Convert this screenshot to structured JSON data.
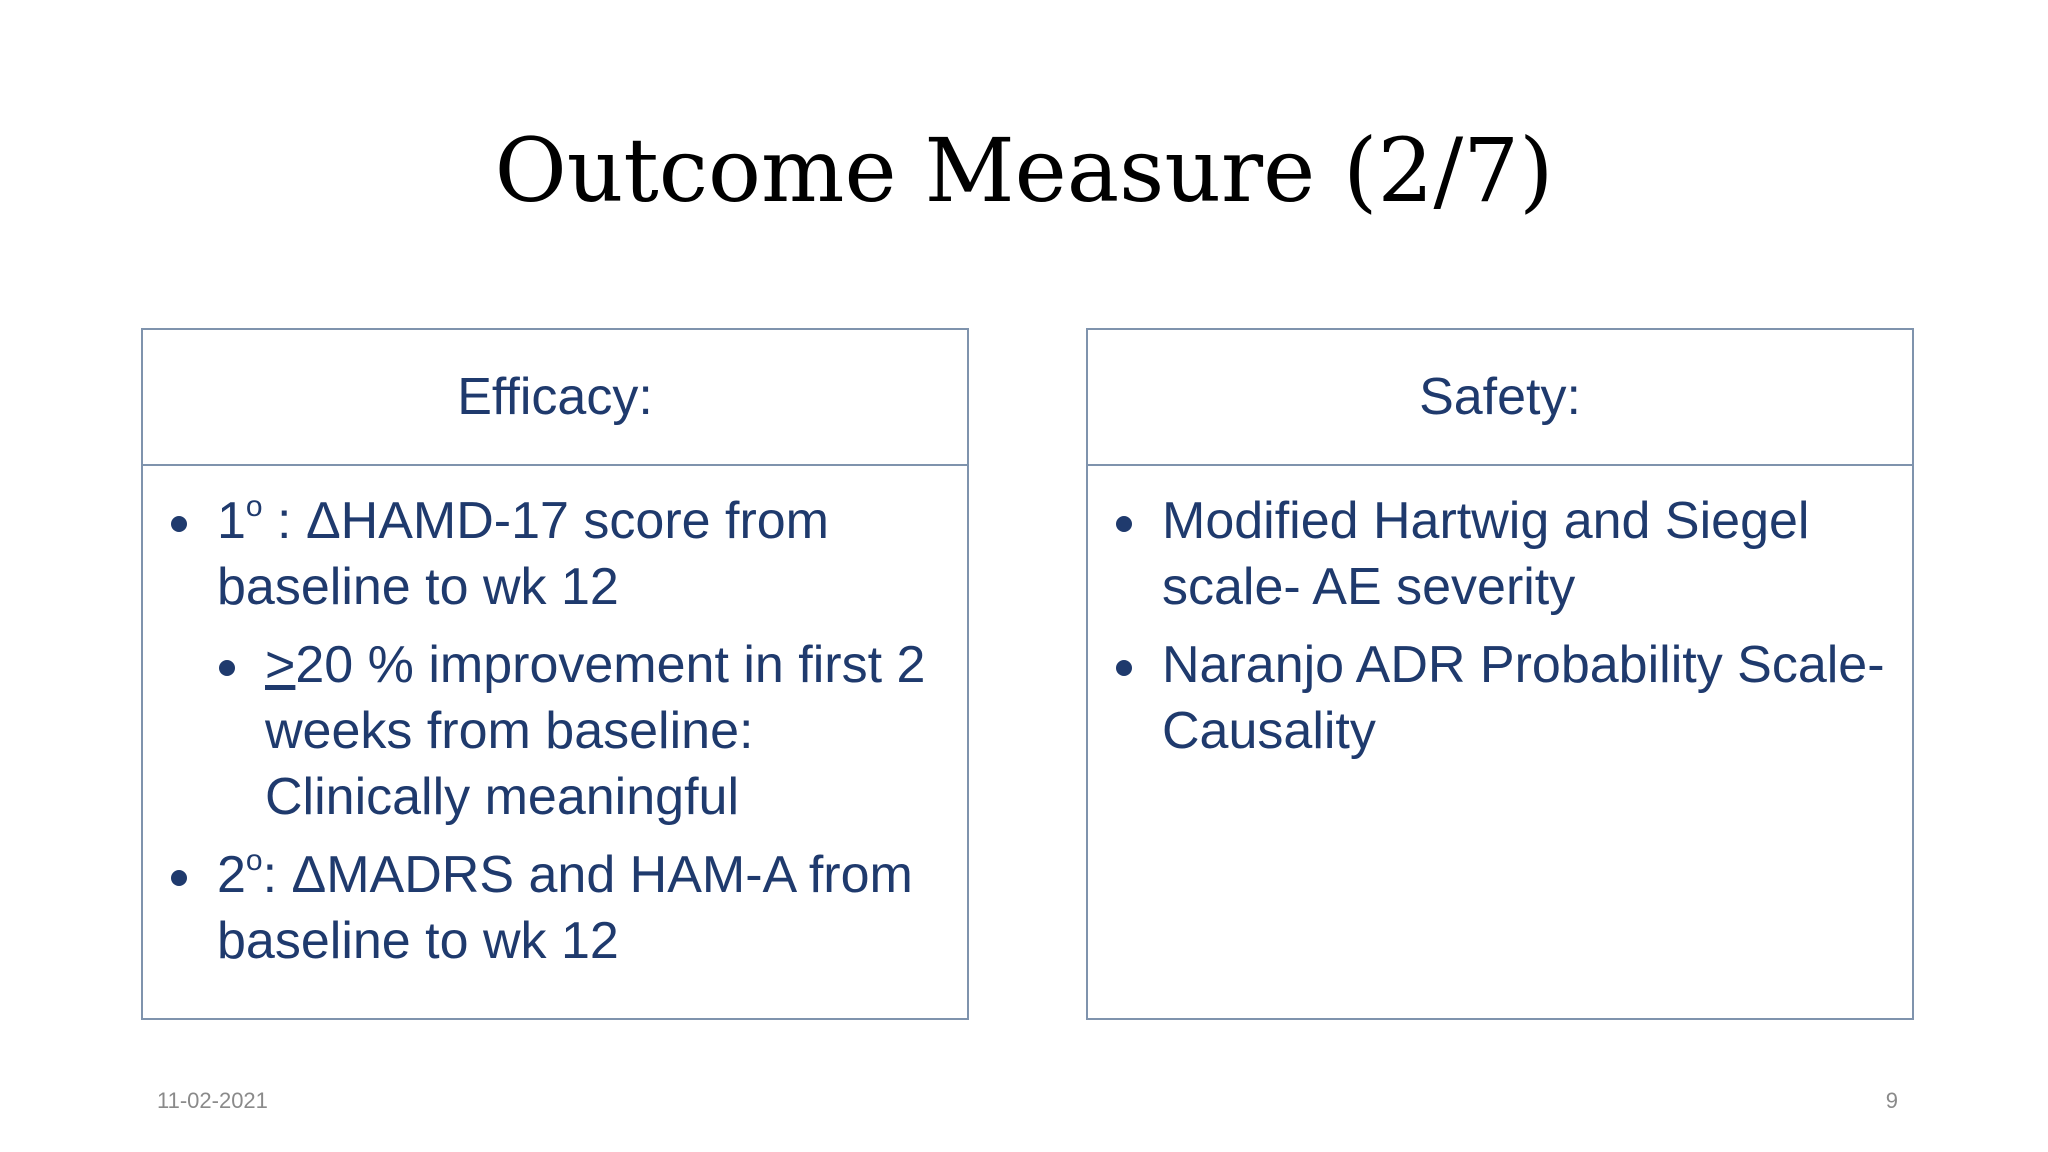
{
  "slide": {
    "title": "Outcome Measure (2/7)",
    "footer": {
      "date": "11-02-2021",
      "page_number": "9"
    }
  },
  "efficacy": {
    "heading": "Efficacy:",
    "primary": {
      "number": "1",
      "ordinal": "o",
      "text": " : ΔHAMD-17 score from baseline to wk 12"
    },
    "sub": {
      "symbol": ">",
      "text": "20 % improvement in first 2 weeks from baseline: Clinically meaningful"
    },
    "secondary": {
      "number": "2",
      "ordinal": "o",
      "text": ": ΔMADRS and HAM-A from baseline to wk 12"
    }
  },
  "safety": {
    "heading": "Safety:",
    "items": [
      "Modified Hartwig and Siegel scale- AE severity",
      "Naranjo ADR Probability Scale- Causality"
    ]
  },
  "colors": {
    "text_blue": "#1f3a6d",
    "border": "#7f93ad",
    "footer_gray": "#8a8a8a"
  }
}
